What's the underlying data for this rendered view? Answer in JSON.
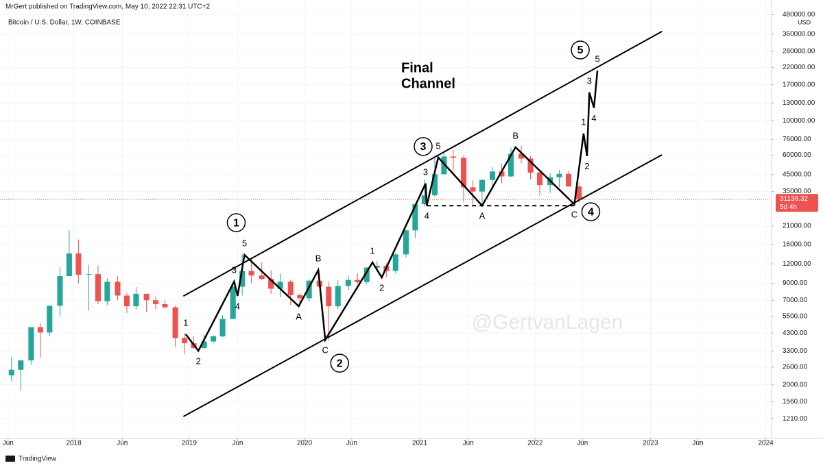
{
  "chart_data": {
    "type": "candlestick",
    "publisher": "MrGert published on TradingView.com, May 10, 2022 22:31 UTC+2",
    "title": "Bitcoin / U.S. Dollar, 1W, COINBASE",
    "annotation": [
      "Final",
      "Channel"
    ],
    "watermark": "@GertvanLagen",
    "currency": "USD",
    "brand": "TradingView",
    "log_scale": true,
    "up_color": "#26a69a",
    "down_color": "#ef5350",
    "x": [
      2017.46,
      2017.54,
      2017.63,
      2017.71,
      2017.79,
      2017.88,
      2017.96,
      2018.04,
      2018.13,
      2018.21,
      2018.29,
      2018.38,
      2018.46,
      2018.54,
      2018.63,
      2018.71,
      2018.79,
      2018.88,
      2018.96,
      2019.04,
      2019.13,
      2019.21,
      2019.29,
      2019.38,
      2019.46,
      2019.54,
      2019.63,
      2019.71,
      2019.79,
      2019.88,
      2019.96,
      2020.04,
      2020.13,
      2020.21,
      2020.29,
      2020.38,
      2020.46,
      2020.54,
      2020.63,
      2020.71,
      2020.79,
      2020.88,
      2020.96,
      2021.04,
      2021.13,
      2021.21,
      2021.29,
      2021.38,
      2021.46,
      2021.54,
      2021.63,
      2021.71,
      2021.79,
      2021.88,
      2021.96,
      2022.04,
      2022.13,
      2022.21,
      2022.29,
      2022.38
    ],
    "open": [
      2300,
      2500,
      2870,
      4700,
      4340,
      6450,
      10000,
      14000,
      10200,
      10300,
      6900,
      9200,
      7500,
      6400,
      7700,
      7000,
      6600,
      6300,
      4000,
      3700,
      3450,
      3800,
      4100,
      5300,
      8550,
      10800,
      10100,
      9600,
      8300,
      9200,
      7550,
      7200,
      9350,
      8550,
      6400,
      8650,
      9450,
      9150,
      11350,
      11650,
      10800,
      13800,
      19700,
      29000,
      33100,
      45200,
      58800,
      57700,
      37300,
      35000,
      41500,
      47100,
      43800,
      61300,
      57000,
      46300,
      38500,
      43200,
      45500,
      37700
    ],
    "high": [
      3000,
      2900,
      4700,
      4980,
      6450,
      11400,
      19700,
      17200,
      11800,
      11700,
      9700,
      9990,
      7800,
      8500,
      7700,
      7400,
      7000,
      6500,
      4300,
      4100,
      4200,
      4150,
      5600,
      9000,
      13900,
      13200,
      12300,
      10900,
      10400,
      9500,
      7750,
      9550,
      10500,
      9200,
      9450,
      10100,
      10400,
      11450,
      12500,
      12100,
      14100,
      19900,
      29300,
      41900,
      58300,
      61800,
      64900,
      59500,
      41300,
      42300,
      50500,
      52900,
      67000,
      69000,
      59100,
      48000,
      45800,
      48200,
      47400,
      40000
    ],
    "low": [
      2100,
      1850,
      2700,
      2980,
      4100,
      5500,
      10000,
      9000,
      6000,
      6600,
      6500,
      7000,
      5800,
      6100,
      5900,
      6100,
      6200,
      3500,
      3150,
      3400,
      3400,
      3700,
      4050,
      5300,
      7500,
      9000,
      9400,
      7700,
      7300,
      6500,
      6400,
      6850,
      8450,
      3850,
      6150,
      8100,
      8900,
      8900,
      11100,
      9900,
      10400,
      13200,
      17600,
      28100,
      32300,
      45000,
      47000,
      30000,
      28800,
      29300,
      37300,
      39600,
      43300,
      53300,
      42000,
      32900,
      34300,
      37200,
      37600,
      29700
    ],
    "close": [
      2500,
      2870,
      4700,
      4340,
      6450,
      10000,
      14000,
      10200,
      10300,
      6900,
      9200,
      7500,
      6400,
      7700,
      7000,
      6600,
      6300,
      4000,
      3700,
      3450,
      3800,
      4100,
      5300,
      8550,
      10800,
      10100,
      9600,
      8300,
      9200,
      7550,
      7200,
      9350,
      8550,
      6400,
      8650,
      9450,
      9150,
      11350,
      11650,
      10800,
      13800,
      19700,
      29000,
      33100,
      45200,
      58800,
      57700,
      37300,
      35000,
      41500,
      47100,
      43800,
      61300,
      57000,
      46300,
      38500,
      43200,
      45500,
      37700,
      31136
    ],
    "last_price": 31136.32,
    "countdown": "5d 4h",
    "waves": {
      "color": "#000000",
      "x": [
        2018.97,
        2019.08,
        2019.39,
        2019.42,
        2019.48,
        2019.95,
        2020.12,
        2020.18,
        2020.59,
        2020.67,
        2021.05,
        2021.06,
        2021.16,
        2021.54,
        2021.83,
        2022.34,
        2022.42,
        2022.45,
        2022.47,
        2022.51,
        2022.54
      ],
      "values": [
        4230,
        3310,
        9230,
        7450,
        13700,
        6400,
        10960,
        3890,
        12250,
        9800,
        39400,
        28400,
        58000,
        28400,
        67500,
        29000,
        82600,
        59200,
        152000,
        121000,
        210000
      ],
      "labels": [
        "1",
        "2",
        "3",
        "4",
        "5",
        "A",
        "B",
        "C",
        "1",
        "2",
        "3",
        "4",
        "5",
        "A",
        "B",
        "C",
        "1",
        "2",
        "3",
        "4",
        "5"
      ]
    },
    "degree_labels": [
      "1",
      "2",
      "3",
      "4",
      "5"
    ],
    "channel": {
      "upper": {
        "x": [
          2018.95,
          2023.1
        ],
        "values": [
          7440,
          375000
        ]
      },
      "lower": {
        "x": [
          2018.95,
          2023.1
        ],
        "values": [
          1250,
          60300
        ]
      }
    },
    "support": {
      "x": [
        2021.06,
        2022.34
      ],
      "values": [
        28400,
        28400
      ]
    },
    "xlim": [
      2017.36,
      2024.05
    ],
    "ylim": [
      904,
      597000
    ],
    "xticks": [
      {
        "value": 2017.43,
        "label": "Jun"
      },
      2018,
      {
        "value": 2018.42,
        "label": "Jun"
      },
      2019,
      {
        "value": 2019.42,
        "label": "Jun"
      },
      2020,
      {
        "value": 2020.41,
        "label": "Jun"
      },
      2021,
      {
        "value": 2021.42,
        "label": "Jun"
      },
      2022,
      {
        "value": 2022.41,
        "label": "Jun"
      },
      2023,
      {
        "value": 2023.41,
        "label": "Jun"
      },
      2024
    ],
    "yticks": [
      {
        "value": 480000,
        "label": "480000.00"
      },
      {
        "value": 360000,
        "label": "360000.00"
      },
      {
        "value": 280000,
        "label": "280000.00"
      },
      {
        "value": 220000,
        "label": "220000.00"
      },
      {
        "value": 170000,
        "label": "170000.00"
      },
      {
        "value": 130000,
        "label": "130000.00"
      },
      {
        "value": 100000,
        "label": "100000.00"
      },
      {
        "value": 76000,
        "label": "76000.00"
      },
      {
        "value": 60000,
        "label": "60000.00"
      },
      {
        "value": 45000,
        "label": "45000.00"
      },
      {
        "value": 35000,
        "label": "35000.00"
      },
      {
        "value": 21000,
        "label": "21000.00"
      },
      {
        "value": 16000,
        "label": "16000.00"
      },
      {
        "value": 12000,
        "label": "12000.00"
      },
      {
        "value": 9000,
        "label": "9000.00"
      },
      {
        "value": 7000,
        "label": "7000.00"
      },
      {
        "value": 5500,
        "label": "5500.00"
      },
      {
        "value": 4300,
        "label": "4300.00"
      },
      {
        "value": 3300,
        "label": "3300.00"
      },
      {
        "value": 2600,
        "label": "2600.00"
      },
      {
        "value": 2000,
        "label": "2000.00"
      },
      {
        "value": 1560,
        "label": "1560.00"
      },
      {
        "value": 1210,
        "label": "1210.00"
      }
    ]
  }
}
